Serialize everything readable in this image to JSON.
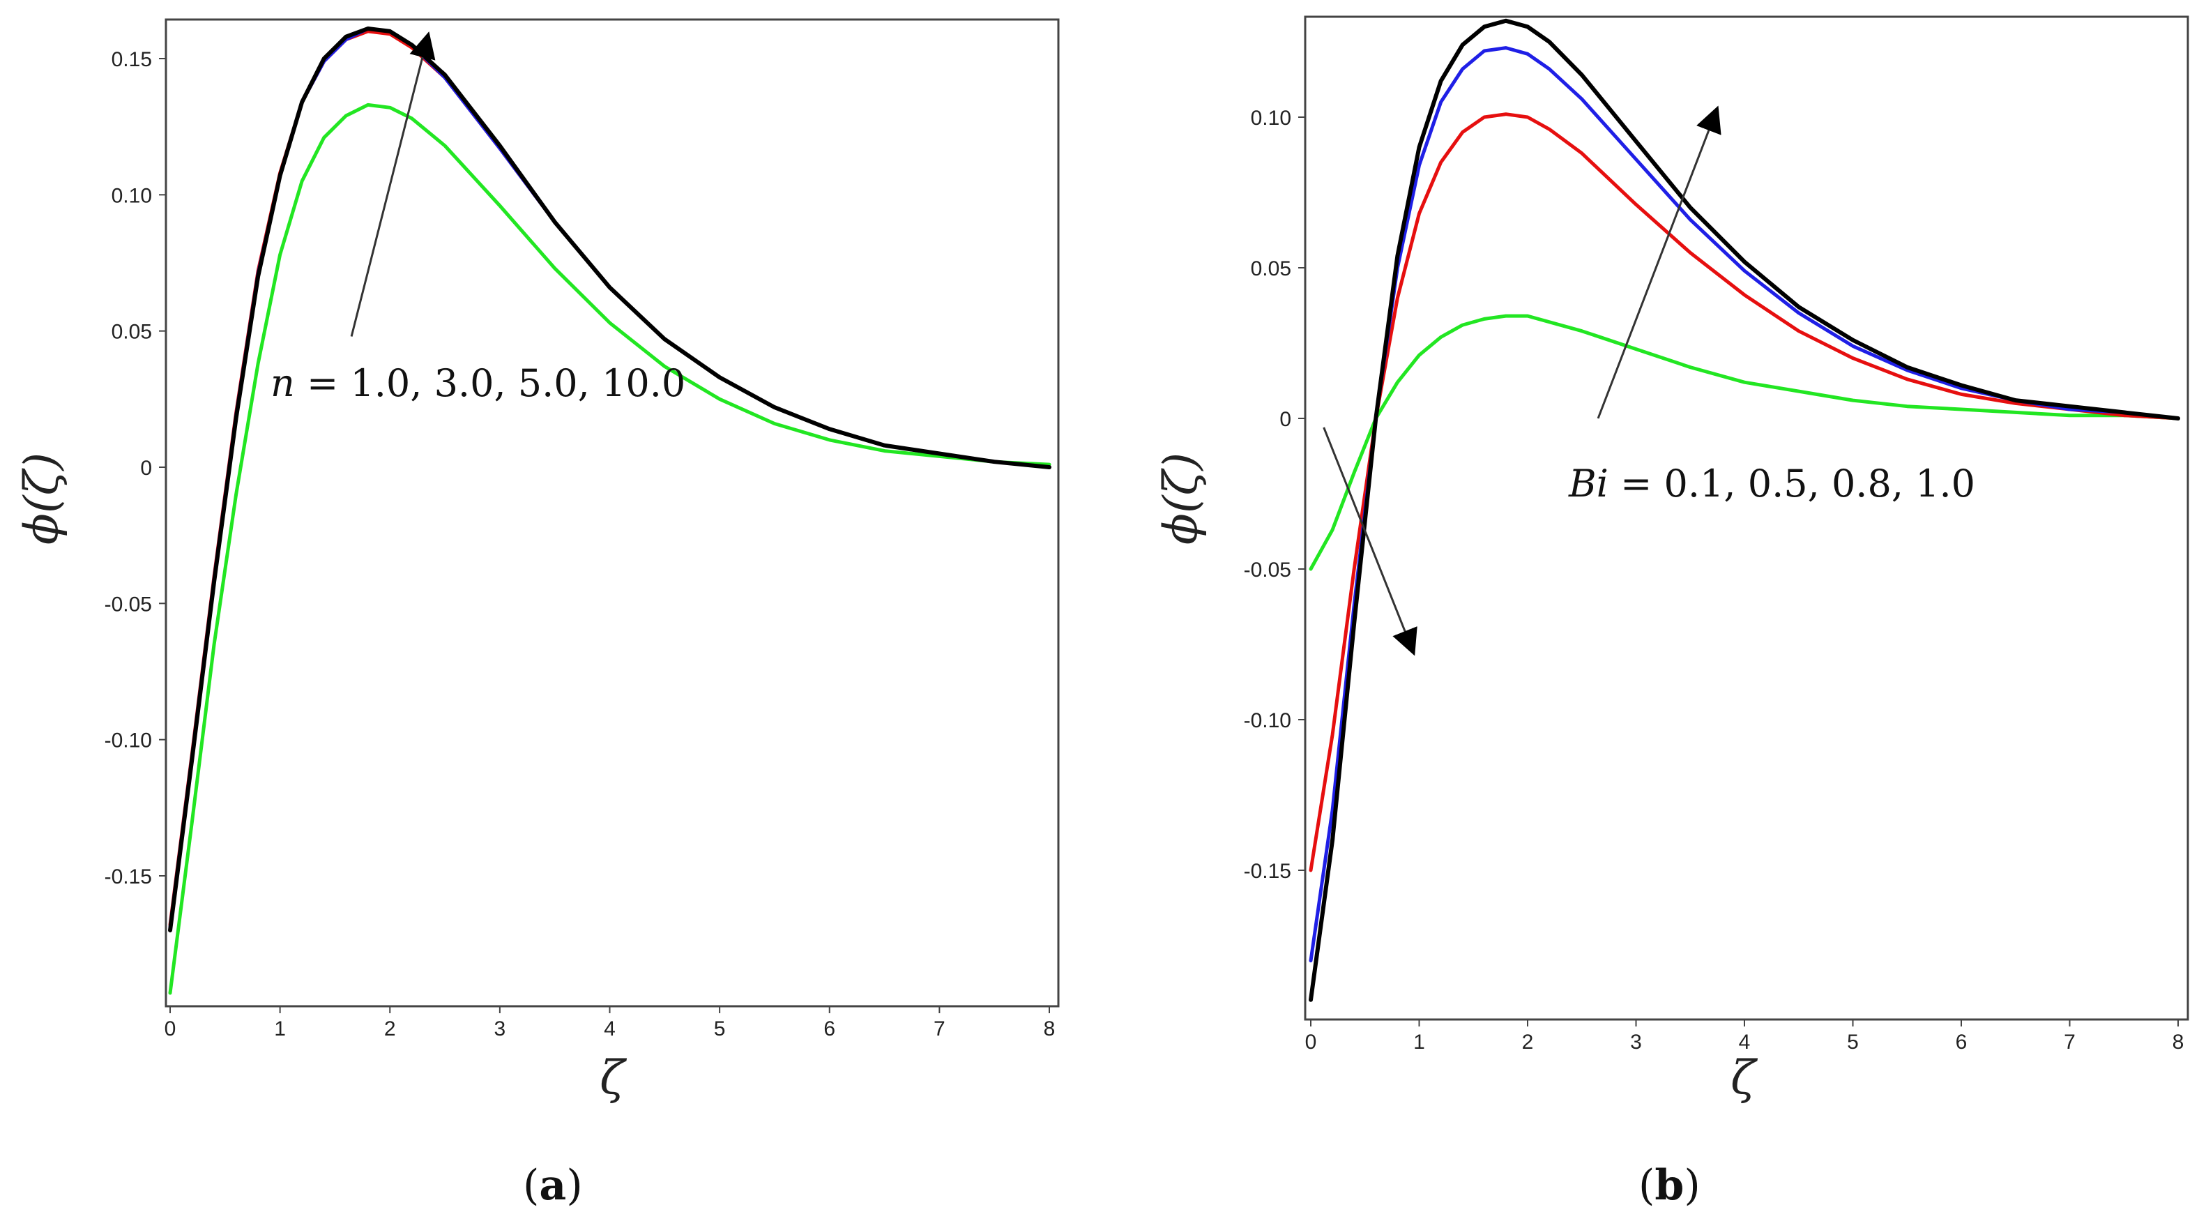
{
  "colors": {
    "black": "#000000",
    "blue": "#1f1fe6",
    "red": "#e60f0f",
    "green": "#22e622",
    "frame": "#444444",
    "arrow": "#333333"
  },
  "chart_data": [
    {
      "type": "line",
      "caption": "(a)",
      "caption_letter": "a",
      "xlabel": "ζ",
      "ylabel": "ϕ(ζ)",
      "xlim": [
        0,
        8
      ],
      "ylim": [
        -0.195,
        0.162
      ],
      "xticks": [
        "0",
        "1",
        "2",
        "3",
        "4",
        "5",
        "6",
        "7",
        "8"
      ],
      "yticks": [
        {
          "value": 0.15,
          "label": "0.15"
        },
        {
          "value": 0.1,
          "label": "0.10"
        },
        {
          "value": 0.05,
          "label": "0.05"
        },
        {
          "value": 0.0,
          "label": "0"
        },
        {
          "value": -0.05,
          "label": "-0.05"
        },
        {
          "value": -0.1,
          "label": "-0.10"
        },
        {
          "value": -0.15,
          "label": "-0.15"
        }
      ],
      "annotation": {
        "symbol": "n",
        "text": " = 1.0, 3.0, 5.0, 10.0",
        "arrow": {
          "from": [
            1.65,
            0.048
          ],
          "to": [
            2.35,
            0.159
          ]
        }
      },
      "series": [
        {
          "name": "n = 1.0",
          "color": "green",
          "points": [
            [
              0,
              -0.193
            ],
            [
              0.2,
              -0.13
            ],
            [
              0.4,
              -0.065
            ],
            [
              0.6,
              -0.01
            ],
            [
              0.8,
              0.038
            ],
            [
              1.0,
              0.078
            ],
            [
              1.2,
              0.105
            ],
            [
              1.4,
              0.121
            ],
            [
              1.6,
              0.129
            ],
            [
              1.8,
              0.133
            ],
            [
              2.0,
              0.132
            ],
            [
              2.2,
              0.128
            ],
            [
              2.5,
              0.118
            ],
            [
              3.0,
              0.096
            ],
            [
              3.5,
              0.073
            ],
            [
              4.0,
              0.053
            ],
            [
              4.5,
              0.037
            ],
            [
              5.0,
              0.025
            ],
            [
              5.5,
              0.016
            ],
            [
              6.0,
              0.01
            ],
            [
              6.5,
              0.006
            ],
            [
              7.0,
              0.004
            ],
            [
              7.5,
              0.002
            ],
            [
              8.0,
              0.001
            ]
          ]
        },
        {
          "name": "n = 3.0",
          "color": "red",
          "points": [
            [
              0,
              -0.168
            ],
            [
              0.2,
              -0.105
            ],
            [
              0.4,
              -0.04
            ],
            [
              0.6,
              0.02
            ],
            [
              0.8,
              0.072
            ],
            [
              1.0,
              0.108
            ],
            [
              1.2,
              0.134
            ],
            [
              1.4,
              0.149
            ],
            [
              1.6,
              0.157
            ],
            [
              1.8,
              0.16
            ],
            [
              2.0,
              0.159
            ],
            [
              2.2,
              0.154
            ],
            [
              2.5,
              0.143
            ],
            [
              3.0,
              0.117
            ],
            [
              3.5,
              0.09
            ],
            [
              4.0,
              0.066
            ],
            [
              4.5,
              0.047
            ],
            [
              5.0,
              0.033
            ],
            [
              5.5,
              0.022
            ],
            [
              6.0,
              0.014
            ],
            [
              6.5,
              0.008
            ],
            [
              7.0,
              0.005
            ],
            [
              7.5,
              0.002
            ],
            [
              8.0,
              0.0
            ]
          ]
        },
        {
          "name": "n = 5.0",
          "color": "blue",
          "points": [
            [
              0,
              -0.169
            ],
            [
              0.2,
              -0.106
            ],
            [
              0.4,
              -0.041
            ],
            [
              0.6,
              0.019
            ],
            [
              0.8,
              0.071
            ],
            [
              1.0,
              0.107
            ],
            [
              1.2,
              0.134
            ],
            [
              1.4,
              0.149
            ],
            [
              1.6,
              0.157
            ],
            [
              1.8,
              0.161
            ],
            [
              2.0,
              0.16
            ],
            [
              2.2,
              0.155
            ],
            [
              2.5,
              0.143
            ],
            [
              3.0,
              0.117
            ],
            [
              3.5,
              0.09
            ],
            [
              4.0,
              0.066
            ],
            [
              4.5,
              0.047
            ],
            [
              5.0,
              0.033
            ],
            [
              5.5,
              0.022
            ],
            [
              6.0,
              0.014
            ],
            [
              6.5,
              0.008
            ],
            [
              7.0,
              0.005
            ],
            [
              7.5,
              0.002
            ],
            [
              8.0,
              0.0
            ]
          ]
        },
        {
          "name": "n = 10.0",
          "color": "black",
          "points": [
            [
              0,
              -0.17
            ],
            [
              0.2,
              -0.107
            ],
            [
              0.4,
              -0.042
            ],
            [
              0.6,
              0.018
            ],
            [
              0.8,
              0.07
            ],
            [
              1.0,
              0.107
            ],
            [
              1.2,
              0.134
            ],
            [
              1.4,
              0.15
            ],
            [
              1.6,
              0.158
            ],
            [
              1.8,
              0.161
            ],
            [
              2.0,
              0.16
            ],
            [
              2.2,
              0.155
            ],
            [
              2.5,
              0.144
            ],
            [
              3.0,
              0.118
            ],
            [
              3.5,
              0.09
            ],
            [
              4.0,
              0.066
            ],
            [
              4.5,
              0.047
            ],
            [
              5.0,
              0.033
            ],
            [
              5.5,
              0.022
            ],
            [
              6.0,
              0.014
            ],
            [
              6.5,
              0.008
            ],
            [
              7.0,
              0.005
            ],
            [
              7.5,
              0.002
            ],
            [
              8.0,
              0.0
            ]
          ]
        }
      ]
    },
    {
      "type": "line",
      "caption": "(b)",
      "caption_letter": "b",
      "xlabel": "ζ",
      "ylabel": "ϕ(ζ)",
      "xlim": [
        0,
        8
      ],
      "ylim": [
        -0.195,
        0.135
      ],
      "xticks": [
        "0",
        "1",
        "2",
        "3",
        "4",
        "5",
        "6",
        "7",
        "8"
      ],
      "yticks": [
        {
          "value": 0.1,
          "label": "0.10"
        },
        {
          "value": 0.05,
          "label": "0.05"
        },
        {
          "value": 0.0,
          "label": "0"
        },
        {
          "value": -0.05,
          "label": "-0.05"
        },
        {
          "value": -0.1,
          "label": "-0.10"
        },
        {
          "value": -0.15,
          "label": "-0.15"
        }
      ],
      "annotation": {
        "symbol": "Bi",
        "text": " = 0.1, 0.5, 0.8, 1.0",
        "arrows": [
          {
            "from": [
              2.65,
              0.0
            ],
            "to": [
              3.75,
              0.103
            ]
          },
          {
            "from": [
              0.12,
              -0.003
            ],
            "to": [
              0.95,
              -0.078
            ]
          }
        ]
      },
      "series": [
        {
          "name": "Bi = 0.1",
          "color": "green",
          "points": [
            [
              0,
              -0.05
            ],
            [
              0.2,
              -0.037
            ],
            [
              0.4,
              -0.018
            ],
            [
              0.6,
              0.0
            ],
            [
              0.8,
              0.012
            ],
            [
              1.0,
              0.021
            ],
            [
              1.2,
              0.027
            ],
            [
              1.4,
              0.031
            ],
            [
              1.6,
              0.033
            ],
            [
              1.8,
              0.034
            ],
            [
              2.0,
              0.034
            ],
            [
              2.5,
              0.029
            ],
            [
              3.0,
              0.023
            ],
            [
              3.5,
              0.017
            ],
            [
              4.0,
              0.012
            ],
            [
              4.5,
              0.009
            ],
            [
              5.0,
              0.006
            ],
            [
              5.5,
              0.004
            ],
            [
              6.0,
              0.003
            ],
            [
              6.5,
              0.002
            ],
            [
              7.0,
              0.001
            ],
            [
              7.5,
              0.001
            ],
            [
              8.0,
              0.0
            ]
          ]
        },
        {
          "name": "Bi = 0.5",
          "color": "red",
          "points": [
            [
              0,
              -0.15
            ],
            [
              0.2,
              -0.105
            ],
            [
              0.4,
              -0.05
            ],
            [
              0.6,
              0.0
            ],
            [
              0.8,
              0.04
            ],
            [
              1.0,
              0.068
            ],
            [
              1.2,
              0.085
            ],
            [
              1.4,
              0.095
            ],
            [
              1.6,
              0.1
            ],
            [
              1.8,
              0.101
            ],
            [
              2.0,
              0.1
            ],
            [
              2.2,
              0.096
            ],
            [
              2.5,
              0.088
            ],
            [
              3.0,
              0.071
            ],
            [
              3.5,
              0.055
            ],
            [
              4.0,
              0.041
            ],
            [
              4.5,
              0.029
            ],
            [
              5.0,
              0.02
            ],
            [
              5.5,
              0.013
            ],
            [
              6.0,
              0.008
            ],
            [
              6.5,
              0.005
            ],
            [
              7.0,
              0.003
            ],
            [
              7.5,
              0.001
            ],
            [
              8.0,
              0.0
            ]
          ]
        },
        {
          "name": "Bi = 0.8",
          "color": "blue",
          "points": [
            [
              0,
              -0.18
            ],
            [
              0.2,
              -0.13
            ],
            [
              0.4,
              -0.062
            ],
            [
              0.6,
              0.0
            ],
            [
              0.8,
              0.05
            ],
            [
              1.0,
              0.084
            ],
            [
              1.2,
              0.105
            ],
            [
              1.4,
              0.116
            ],
            [
              1.6,
              0.122
            ],
            [
              1.8,
              0.123
            ],
            [
              2.0,
              0.121
            ],
            [
              2.2,
              0.116
            ],
            [
              2.5,
              0.106
            ],
            [
              3.0,
              0.086
            ],
            [
              3.5,
              0.066
            ],
            [
              4.0,
              0.049
            ],
            [
              4.5,
              0.035
            ],
            [
              5.0,
              0.024
            ],
            [
              5.5,
              0.016
            ],
            [
              6.0,
              0.01
            ],
            [
              6.5,
              0.006
            ],
            [
              7.0,
              0.003
            ],
            [
              7.5,
              0.002
            ],
            [
              8.0,
              0.0
            ]
          ]
        },
        {
          "name": "Bi = 1.0",
          "color": "black",
          "points": [
            [
              0,
              -0.193
            ],
            [
              0.2,
              -0.14
            ],
            [
              0.4,
              -0.068
            ],
            [
              0.6,
              0.0
            ],
            [
              0.8,
              0.054
            ],
            [
              1.0,
              0.09
            ],
            [
              1.2,
              0.112
            ],
            [
              1.4,
              0.124
            ],
            [
              1.6,
              0.13
            ],
            [
              1.8,
              0.132
            ],
            [
              2.0,
              0.13
            ],
            [
              2.2,
              0.125
            ],
            [
              2.5,
              0.114
            ],
            [
              3.0,
              0.092
            ],
            [
              3.5,
              0.07
            ],
            [
              4.0,
              0.052
            ],
            [
              4.5,
              0.037
            ],
            [
              5.0,
              0.026
            ],
            [
              5.5,
              0.017
            ],
            [
              6.0,
              0.011
            ],
            [
              6.5,
              0.006
            ],
            [
              7.0,
              0.004
            ],
            [
              7.5,
              0.002
            ],
            [
              8.0,
              0.0
            ]
          ]
        }
      ]
    }
  ]
}
